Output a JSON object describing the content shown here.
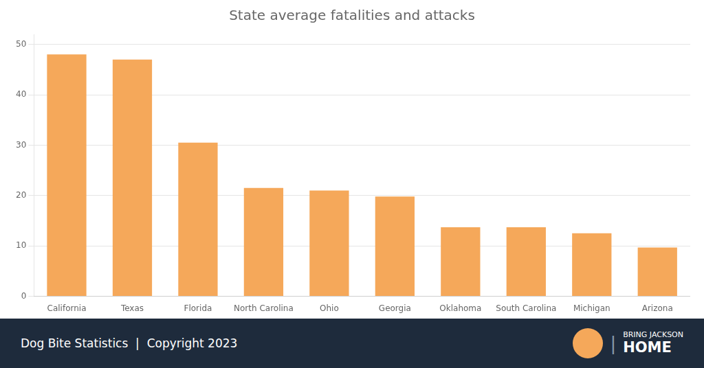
{
  "chart_data": {
    "type": "bar",
    "title": "State average fatalities and attacks",
    "categories": [
      "California",
      "Texas",
      "Florida",
      "North Carolina",
      "Ohio",
      "Georgia",
      "Oklahoma",
      "South Carolina",
      "Michigan",
      "Arizona"
    ],
    "values": [
      48,
      47,
      30.5,
      21.5,
      21,
      19.8,
      13.7,
      13.7,
      12.5,
      9.7
    ],
    "color": "#F5A85A",
    "ylim": [
      0,
      52
    ],
    "yticks": [
      0,
      10,
      20,
      30,
      40,
      50
    ],
    "grid": true,
    "annotations": [
      "Dog Bite Statistics  |  Copyright 2023",
      "|",
      "BRING JACKSON",
      "HOME"
    ]
  }
}
